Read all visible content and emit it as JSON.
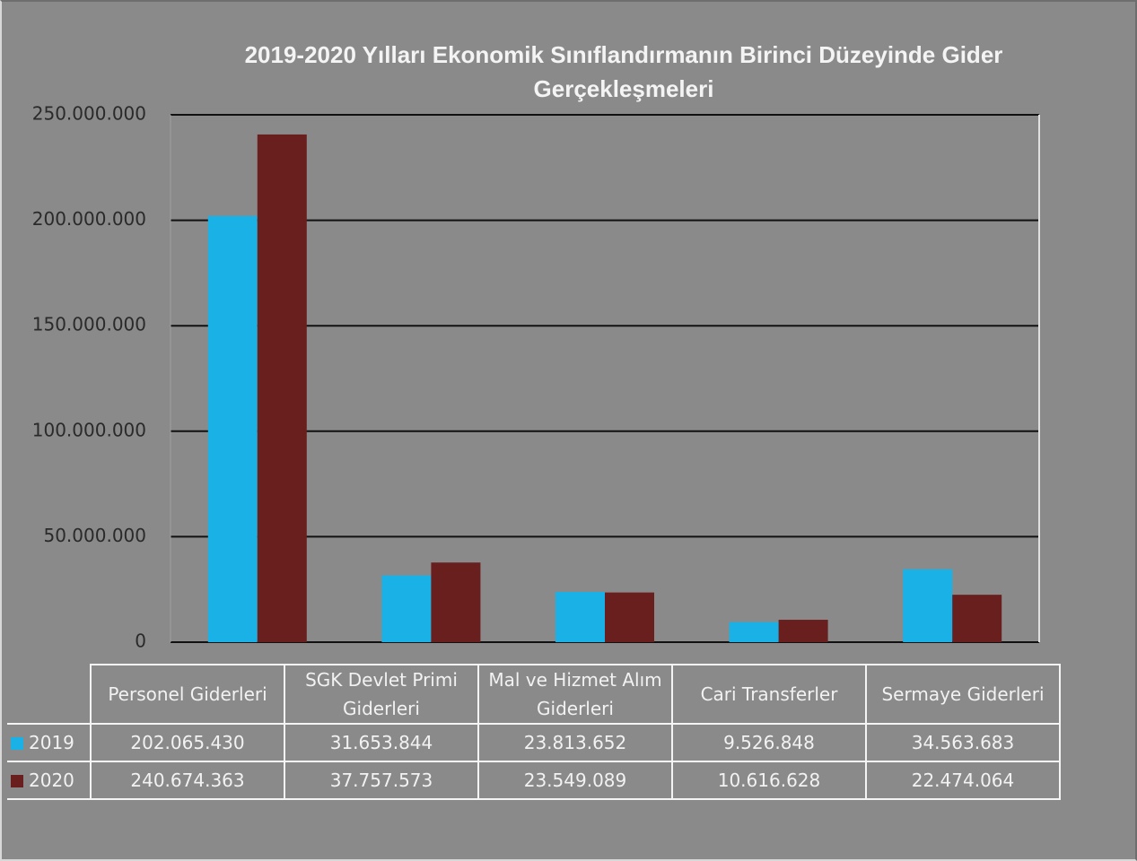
{
  "chart_data": {
    "type": "bar",
    "title": "2019-2020 Yılları Ekonomik Sınıflandırmanın Birinci Düzeyinde Gider Gerçekleşmeleri",
    "categories": [
      "Personel Giderleri",
      "SGK Devlet Primi Giderleri",
      "Mal ve Hizmet Alım Giderleri",
      "Cari Transferler",
      "Sermaye Giderleri"
    ],
    "series": [
      {
        "name": "2019",
        "color": "#1ab2e6",
        "values": [
          202065430,
          31653844,
          23813652,
          9526848,
          34563683
        ],
        "value_labels": [
          "202.065.430",
          "31.653.844",
          "23.813.652",
          "9.526.848",
          "34.563.683"
        ]
      },
      {
        "name": "2020",
        "color": "#6a1f1f",
        "values": [
          240674363,
          37757573,
          23549089,
          10616628,
          22474064
        ],
        "value_labels": [
          "240.674.363",
          "37.757.573",
          "23.549.089",
          "10.616.628",
          "22.474.064"
        ]
      }
    ],
    "ylim": [
      0,
      250000000
    ],
    "yticks": [
      0,
      {
        "value": 50000000,
        "label": "50.000.000"
      },
      {
        "value": 100000000,
        "label": "100.000.000"
      },
      {
        "value": 150000000,
        "label": "150.000.000"
      },
      {
        "value": 200000000,
        "label": "200.000.000"
      },
      {
        "value": 250000000,
        "label": "250.000.000"
      }
    ],
    "grid": true
  }
}
